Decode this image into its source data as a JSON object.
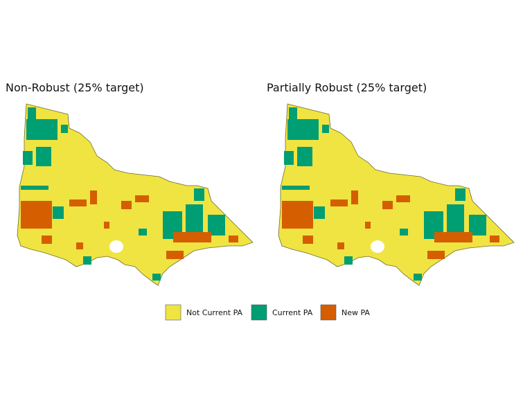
{
  "panels": [
    {
      "title": "Non-Robust (25% target)"
    },
    {
      "title": "Partially Robust (25% target)"
    }
  ],
  "legend": [
    {
      "label": "Not Current PA",
      "color": "#f0e442"
    },
    {
      "label": "Current PA",
      "color": "#009e73"
    },
    {
      "label": "New PA",
      "color": "#d55e00"
    }
  ]
}
